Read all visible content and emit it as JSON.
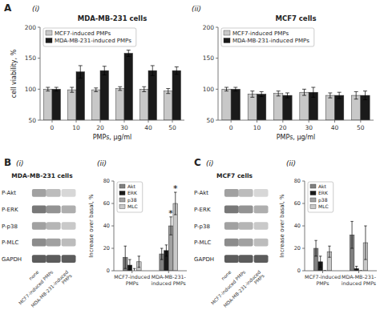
{
  "chart_data": [
    {
      "type": "bar",
      "title": "MDA-MB-231 cells",
      "annotations": [
        {
          "text": "A"
        },
        {
          "text": "(i)"
        }
      ],
      "xlabel": "PMPs, µg/ml",
      "ylabel": "cell viability, %",
      "categories": [
        "0",
        "10",
        "20",
        "30",
        "40",
        "50"
      ],
      "series": [
        {
          "name": "MCF7-induced PMPs",
          "color": "#c8c8c8",
          "values": [
            100,
            99,
            99,
            101,
            100,
            97
          ],
          "errors": [
            3,
            4,
            3,
            3,
            4,
            4
          ]
        },
        {
          "name": "MDA-MB-231-induced PMPs",
          "color": "#1a1a1a",
          "values": [
            100,
            128,
            130,
            158,
            130,
            130
          ],
          "errors": [
            3,
            10,
            7,
            5,
            8,
            6
          ]
        }
      ],
      "ylim": [
        50,
        200
      ],
      "yticks": [
        50,
        100,
        150,
        200
      ],
      "legend": "upper left"
    },
    {
      "type": "bar",
      "title": "MCF7 cells",
      "annotations": [
        {
          "text": "(ii)"
        }
      ],
      "xlabel": "PMPs, µg/ml",
      "categories": [
        "0",
        "10",
        "20",
        "30",
        "40",
        "50"
      ],
      "series": [
        {
          "name": "MCF7-induced PMPs",
          "color": "#c8c8c8",
          "values": [
            100,
            92,
            93,
            95,
            90,
            90
          ],
          "errors": [
            3,
            5,
            4,
            5,
            4,
            6
          ]
        },
        {
          "name": "MDA-MB-231-induced PMPs",
          "color": "#1a1a1a",
          "values": [
            100,
            92,
            90,
            95,
            90,
            90
          ],
          "errors": [
            3,
            4,
            4,
            8,
            5,
            7
          ]
        }
      ],
      "ylim": [
        50,
        200
      ],
      "yticks": [
        50,
        100,
        150,
        200
      ],
      "legend": "upper left"
    },
    {
      "type": "blot",
      "title": "MDA-MB-231 cells",
      "annotations": [
        {
          "text": "B"
        },
        {
          "text": "(i)"
        }
      ],
      "categories": [
        "P-Akt",
        "P-ERK",
        "P-p38",
        "P-MLC",
        "GAPDH"
      ],
      "series": [
        {
          "name": "none",
          "colors": [
            "#909090",
            "#606060",
            "#909090",
            "#787878",
            "#404040"
          ]
        },
        {
          "name": "MCF7-induced PMPs",
          "colors": [
            "#b0b0b0",
            "#808080",
            "#a8a8a8",
            "#909090",
            "#404040"
          ]
        },
        {
          "name": "MDA-MB-231-induced\nPMPs",
          "colors": [
            "#d0d0d0",
            "#a0a0a0",
            "#c0c0c0",
            "#b0b0b0",
            "#404040"
          ]
        }
      ]
    },
    {
      "type": "bar",
      "annotations": [
        {
          "text": "(ii)"
        },
        {
          "text": "*",
          "series": 2,
          "category": 1
        },
        {
          "text": "*",
          "series": 3,
          "category": 1
        }
      ],
      "ylabel": "Increase over basal, %",
      "categories": [
        "MCF7-induced\nPMPs",
        "MDA-MB-231-\ninduced PMPs"
      ],
      "series": [
        {
          "name": "Akt",
          "color": "#808080",
          "values": [
            12,
            15
          ],
          "errors": [
            10,
            5
          ]
        },
        {
          "name": "ERK",
          "color": "#1a1a1a",
          "values": [
            5,
            18
          ],
          "errors": [
            5,
            5
          ]
        },
        {
          "name": "p38",
          "color": "#a0a0a0",
          "values": [
            0,
            40
          ],
          "errors": [
            2,
            8
          ]
        },
        {
          "name": "MLC",
          "color": "#c8c8c8",
          "values": [
            8,
            60
          ],
          "errors": [
            5,
            10
          ]
        }
      ],
      "ylim": [
        0,
        80
      ],
      "yticks": [
        0,
        20,
        40,
        60,
        80
      ],
      "legend": "upper left"
    },
    {
      "type": "blot",
      "title": "MCF7 cells",
      "annotations": [
        {
          "text": "C"
        },
        {
          "text": "(i)"
        }
      ],
      "categories": [
        "P-Akt",
        "P-ERK",
        "P-p38",
        "P-MLC",
        "GAPDH"
      ],
      "series": [
        {
          "name": "none",
          "colors": [
            "#909090",
            "#606060",
            "#909090",
            "#787878",
            "#404040"
          ]
        },
        {
          "name": "MCF7-induced PMPs",
          "colors": [
            "#b0b0b0",
            "#808080",
            "#a8a8a8",
            "#909090",
            "#404040"
          ]
        },
        {
          "name": "MDA-MB-231-induced\nPMPs",
          "colors": [
            "#d0d0d0",
            "#a0a0a0",
            "#c0c0c0",
            "#b0b0b0",
            "#404040"
          ]
        }
      ]
    },
    {
      "type": "bar",
      "annotations": [
        {
          "text": "(ii)"
        }
      ],
      "ylabel": "Increase over basal, %",
      "categories": [
        "MCF7-induced\nPMPs",
        "MDA-MB-231-\ninduced PMPs"
      ],
      "series": [
        {
          "name": "Akt",
          "color": "#808080",
          "values": [
            20,
            32
          ],
          "errors": [
            7,
            12
          ]
        },
        {
          "name": "ERK",
          "color": "#1a1a1a",
          "values": [
            8,
            2
          ],
          "errors": [
            5,
            2
          ]
        },
        {
          "name": "p38",
          "color": "#a0a0a0",
          "values": [
            0,
            0
          ],
          "errors": [
            0,
            0
          ]
        },
        {
          "name": "MLC",
          "color": "#c8c8c8",
          "values": [
            17,
            25
          ],
          "errors": [
            5,
            15
          ]
        }
      ],
      "ylim": [
        0,
        80
      ],
      "yticks": [
        0,
        20,
        40,
        60,
        80
      ],
      "legend": "upper left"
    }
  ]
}
